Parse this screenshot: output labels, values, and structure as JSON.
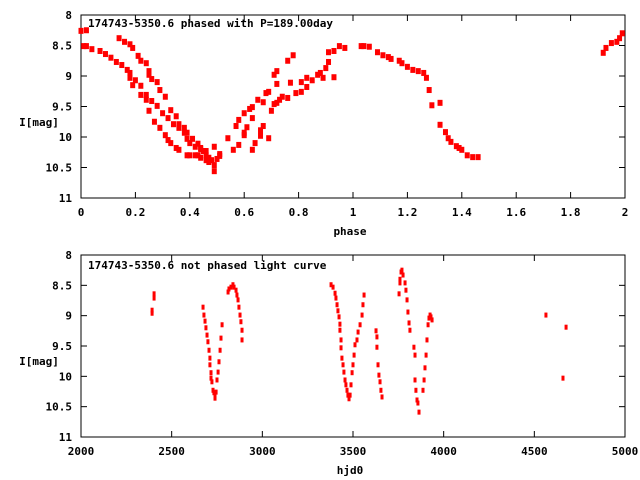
{
  "chart_data": [
    {
      "type": "scatter",
      "title": "174743-5350.6 phased with P=189.00day",
      "xlabel": "phase",
      "ylabel": "I[mag]",
      "xlim": [
        0,
        2
      ],
      "ylim": [
        11,
        8
      ],
      "y_inverted": true,
      "grid": false,
      "xticks": [
        "0",
        "0.2",
        "0.4",
        "0.6",
        "0.8",
        "1",
        "1.2",
        "1.4",
        "1.6",
        "1.8",
        "2"
      ],
      "yticks": [
        "8",
        "8.5",
        "9",
        "9.5",
        "10",
        "10.5",
        "11"
      ],
      "marker_color": "#ff0000",
      "points": [
        [
          0.0,
          8.26
        ],
        [
          0.02,
          8.25
        ],
        [
          0.01,
          8.51
        ],
        [
          0.02,
          8.51
        ],
        [
          0.04,
          8.56
        ],
        [
          0.07,
          8.59
        ],
        [
          0.09,
          8.64
        ],
        [
          0.11,
          8.7
        ],
        [
          0.13,
          8.77
        ],
        [
          0.15,
          8.82
        ],
        [
          0.17,
          8.9
        ],
        [
          0.18,
          8.95
        ],
        [
          0.2,
          9.07
        ],
        [
          0.22,
          9.16
        ],
        [
          0.24,
          9.31
        ],
        [
          0.26,
          9.41
        ],
        [
          0.28,
          9.49
        ],
        [
          0.3,
          9.61
        ],
        [
          0.32,
          9.69
        ],
        [
          0.34,
          9.79
        ],
        [
          0.36,
          9.85
        ],
        [
          0.38,
          9.93
        ],
        [
          0.39,
          10.03
        ],
        [
          0.4,
          10.1
        ],
        [
          0.42,
          10.16
        ],
        [
          0.44,
          10.2
        ],
        [
          0.46,
          10.23
        ],
        [
          0.14,
          8.38
        ],
        [
          0.16,
          8.44
        ],
        [
          0.18,
          8.48
        ],
        [
          0.19,
          8.54
        ],
        [
          0.21,
          8.67
        ],
        [
          0.22,
          8.75
        ],
        [
          0.24,
          8.79
        ],
        [
          0.25,
          8.92
        ],
        [
          0.25,
          8.98
        ],
        [
          0.26,
          9.05
        ],
        [
          0.28,
          9.1
        ],
        [
          0.29,
          9.23
        ],
        [
          0.31,
          9.34
        ],
        [
          0.33,
          9.56
        ],
        [
          0.35,
          9.66
        ],
        [
          0.36,
          9.79
        ],
        [
          0.38,
          9.85
        ],
        [
          0.39,
          9.93
        ],
        [
          0.41,
          10.03
        ],
        [
          0.43,
          10.11
        ],
        [
          0.44,
          10.18
        ],
        [
          0.45,
          10.23
        ],
        [
          0.18,
          9.03
        ],
        [
          0.19,
          9.15
        ],
        [
          0.22,
          9.31
        ],
        [
          0.24,
          9.39
        ],
        [
          0.25,
          9.57
        ],
        [
          0.27,
          9.75
        ],
        [
          0.29,
          9.85
        ],
        [
          0.31,
          9.97
        ],
        [
          0.32,
          10.05
        ],
        [
          0.33,
          10.1
        ],
        [
          0.35,
          10.18
        ],
        [
          0.36,
          10.21
        ],
        [
          0.39,
          10.3
        ],
        [
          0.4,
          10.3
        ],
        [
          0.42,
          10.3
        ],
        [
          0.43,
          10.3
        ],
        [
          0.44,
          10.34
        ],
        [
          0.46,
          10.38
        ],
        [
          0.46,
          10.3
        ],
        [
          0.47,
          10.34
        ],
        [
          0.47,
          10.41
        ],
        [
          0.48,
          10.38
        ],
        [
          0.49,
          10.46
        ],
        [
          0.49,
          10.56
        ],
        [
          0.49,
          10.16
        ],
        [
          0.5,
          10.36
        ],
        [
          0.51,
          10.28
        ],
        [
          0.51,
          10.31
        ],
        [
          0.54,
          10.02
        ],
        [
          0.56,
          10.21
        ],
        [
          0.57,
          9.82
        ],
        [
          0.58,
          10.13
        ],
        [
          0.58,
          9.72
        ],
        [
          0.6,
          9.97
        ],
        [
          0.6,
          9.61
        ],
        [
          0.6,
          9.93
        ],
        [
          0.61,
          9.84
        ],
        [
          0.62,
          9.54
        ],
        [
          0.63,
          9.69
        ],
        [
          0.63,
          10.21
        ],
        [
          0.63,
          9.51
        ],
        [
          0.64,
          10.1
        ],
        [
          0.65,
          9.39
        ],
        [
          0.66,
          9.98
        ],
        [
          0.66,
          9.89
        ],
        [
          0.67,
          9.43
        ],
        [
          0.67,
          9.82
        ],
        [
          0.68,
          9.28
        ],
        [
          0.69,
          9.26
        ],
        [
          0.69,
          10.02
        ],
        [
          0.7,
          9.57
        ],
        [
          0.71,
          9.46
        ],
        [
          0.71,
          8.98
        ],
        [
          0.72,
          9.44
        ],
        [
          0.72,
          9.13
        ],
        [
          0.72,
          8.92
        ],
        [
          0.73,
          9.39
        ],
        [
          0.74,
          9.34
        ],
        [
          0.76,
          8.75
        ],
        [
          0.76,
          9.36
        ],
        [
          0.77,
          9.11
        ],
        [
          0.78,
          8.66
        ],
        [
          0.79,
          9.28
        ],
        [
          0.81,
          9.1
        ],
        [
          0.81,
          9.26
        ],
        [
          0.83,
          9.03
        ],
        [
          0.83,
          9.18
        ],
        [
          0.85,
          9.07
        ],
        [
          0.87,
          8.98
        ],
        [
          0.88,
          8.95
        ],
        [
          0.89,
          9.03
        ],
        [
          0.9,
          8.87
        ],
        [
          0.91,
          8.77
        ],
        [
          0.91,
          8.61
        ],
        [
          0.93,
          9.02
        ],
        [
          0.93,
          8.59
        ],
        [
          0.95,
          8.51
        ],
        [
          0.97,
          8.54
        ],
        [
          1.03,
          8.51
        ],
        [
          1.04,
          8.51
        ],
        [
          1.06,
          8.52
        ],
        [
          1.09,
          8.61
        ],
        [
          1.11,
          8.66
        ],
        [
          1.13,
          8.69
        ],
        [
          1.14,
          8.72
        ],
        [
          1.17,
          8.75
        ],
        [
          1.18,
          8.79
        ],
        [
          1.2,
          8.85
        ],
        [
          1.22,
          8.9
        ],
        [
          1.24,
          8.92
        ],
        [
          1.26,
          8.95
        ],
        [
          1.27,
          9.03
        ],
        [
          1.28,
          9.23
        ],
        [
          1.29,
          9.48
        ],
        [
          1.32,
          9.44
        ],
        [
          1.32,
          9.8
        ],
        [
          1.34,
          9.92
        ],
        [
          1.35,
          10.02
        ],
        [
          1.36,
          10.08
        ],
        [
          1.38,
          10.15
        ],
        [
          1.39,
          10.18
        ],
        [
          1.4,
          10.21
        ],
        [
          1.42,
          10.3
        ],
        [
          1.44,
          10.33
        ],
        [
          1.46,
          10.33
        ],
        [
          1.92,
          8.62
        ],
        [
          1.93,
          8.54
        ],
        [
          1.95,
          8.46
        ],
        [
          1.97,
          8.44
        ],
        [
          1.98,
          8.38
        ],
        [
          1.99,
          8.3
        ]
      ]
    },
    {
      "type": "scatter",
      "title": "174743-5350.6 not phased light curve",
      "xlabel": "hjd0",
      "ylabel": "I[mag]",
      "xlim": [
        2000,
        5000
      ],
      "ylim": [
        11,
        8
      ],
      "y_inverted": true,
      "grid": false,
      "xticks": [
        "2000",
        "2500",
        "3000",
        "3500",
        "4000",
        "4500",
        "5000"
      ],
      "yticks": [
        "8",
        "8.5",
        "9",
        "9.5",
        "10",
        "10.5",
        "11"
      ],
      "marker_color": "#ff0000",
      "points": [
        [
          2392,
          8.96
        ],
        [
          2392,
          8.91
        ],
        [
          2403,
          8.71
        ],
        [
          2403,
          8.64
        ],
        [
          2673,
          8.86
        ],
        [
          2678,
          8.99
        ],
        [
          2684,
          9.09
        ],
        [
          2689,
          9.2
        ],
        [
          2695,
          9.32
        ],
        [
          2700,
          9.43
        ],
        [
          2706,
          9.57
        ],
        [
          2711,
          9.7
        ],
        [
          2711,
          9.81
        ],
        [
          2717,
          9.94
        ],
        [
          2717,
          10.03
        ],
        [
          2722,
          10.09
        ],
        [
          2728,
          10.23
        ],
        [
          2733,
          10.27
        ],
        [
          2739,
          10.32
        ],
        [
          2739,
          10.36
        ],
        [
          2745,
          10.26
        ],
        [
          2750,
          10.06
        ],
        [
          2756,
          9.93
        ],
        [
          2761,
          9.76
        ],
        [
          2767,
          9.57
        ],
        [
          2772,
          9.37
        ],
        [
          2778,
          9.15
        ],
        [
          2811,
          8.61
        ],
        [
          2816,
          8.56
        ],
        [
          2827,
          8.53
        ],
        [
          2838,
          8.49
        ],
        [
          2844,
          8.53
        ],
        [
          2855,
          8.58
        ],
        [
          2860,
          8.66
        ],
        [
          2866,
          8.74
        ],
        [
          2871,
          8.86
        ],
        [
          2877,
          8.99
        ],
        [
          2882,
          9.1
        ],
        [
          2888,
          9.24
        ],
        [
          2888,
          9.4
        ],
        [
          3379,
          8.49
        ],
        [
          3390,
          8.53
        ],
        [
          3401,
          8.63
        ],
        [
          3406,
          8.71
        ],
        [
          3412,
          8.82
        ],
        [
          3417,
          8.92
        ],
        [
          3423,
          9.02
        ],
        [
          3428,
          9.14
        ],
        [
          3428,
          9.24
        ],
        [
          3434,
          9.4
        ],
        [
          3434,
          9.53
        ],
        [
          3439,
          9.7
        ],
        [
          3445,
          9.81
        ],
        [
          3450,
          9.93
        ],
        [
          3456,
          10.06
        ],
        [
          3461,
          10.14
        ],
        [
          3467,
          10.23
        ],
        [
          3472,
          10.31
        ],
        [
          3478,
          10.37
        ],
        [
          3484,
          10.31
        ],
        [
          3489,
          10.14
        ],
        [
          3495,
          9.94
        ],
        [
          3500,
          9.81
        ],
        [
          3506,
          9.65
        ],
        [
          3511,
          9.48
        ],
        [
          3522,
          9.4
        ],
        [
          3528,
          9.27
        ],
        [
          3539,
          9.15
        ],
        [
          3550,
          8.99
        ],
        [
          3555,
          8.82
        ],
        [
          3561,
          8.66
        ],
        [
          3627,
          9.25
        ],
        [
          3632,
          9.35
        ],
        [
          3632,
          9.52
        ],
        [
          3638,
          9.81
        ],
        [
          3643,
          9.98
        ],
        [
          3649,
          10.09
        ],
        [
          3654,
          10.23
        ],
        [
          3660,
          10.34
        ],
        [
          3754,
          8.64
        ],
        [
          3759,
          8.46
        ],
        [
          3759,
          8.4
        ],
        [
          3765,
          8.28
        ],
        [
          3770,
          8.25
        ],
        [
          3776,
          8.33
        ],
        [
          3787,
          8.46
        ],
        [
          3792,
          8.58
        ],
        [
          3798,
          8.74
        ],
        [
          3803,
          8.94
        ],
        [
          3809,
          9.12
        ],
        [
          3814,
          9.24
        ],
        [
          3836,
          9.52
        ],
        [
          3842,
          9.65
        ],
        [
          3842,
          10.06
        ],
        [
          3847,
          10.23
        ],
        [
          3853,
          10.39
        ],
        [
          3858,
          10.44
        ],
        [
          3864,
          10.59
        ],
        [
          3886,
          10.23
        ],
        [
          3892,
          10.06
        ],
        [
          3897,
          9.86
        ],
        [
          3903,
          9.65
        ],
        [
          3908,
          9.4
        ],
        [
          3914,
          9.15
        ],
        [
          3919,
          9.04
        ],
        [
          3925,
          8.99
        ],
        [
          3930,
          9.02
        ],
        [
          3936,
          9.07
        ],
        [
          4564,
          8.99
        ],
        [
          4658,
          10.03
        ],
        [
          4675,
          9.19
        ]
      ]
    }
  ]
}
